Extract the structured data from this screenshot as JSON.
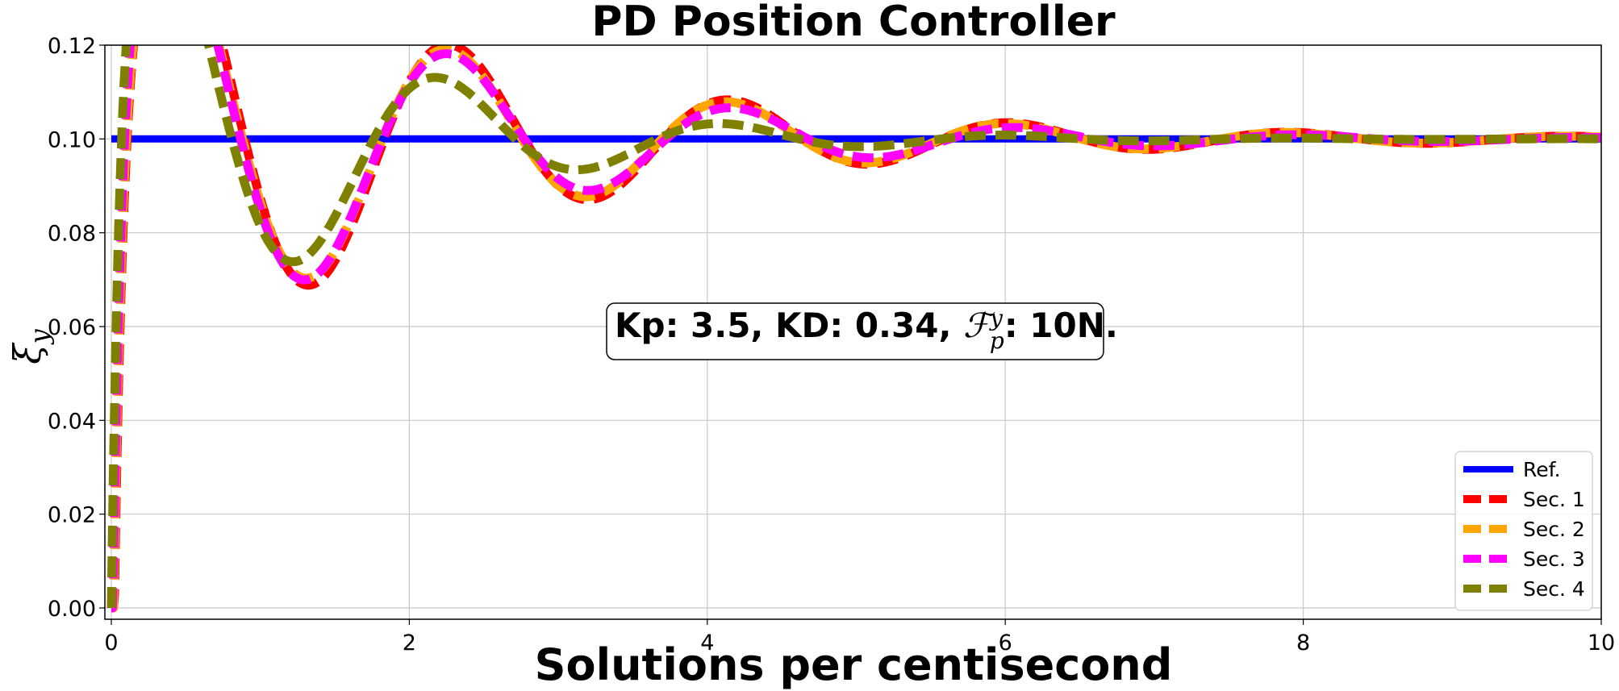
{
  "chart_data": {
    "type": "line",
    "title": "PD Position Controller",
    "xlabel": "Solutions per centisecond",
    "ylabel": "ξ",
    "ylabel_sub": "y",
    "xlim": [
      0,
      10
    ],
    "ylim": [
      0.0,
      0.12
    ],
    "xticks": [
      0,
      2,
      4,
      6,
      8,
      10
    ],
    "xtick_labels": [
      "0",
      "2",
      "4",
      "6",
      "8",
      "10"
    ],
    "yticks": [
      0.0,
      0.02,
      0.04,
      0.06,
      0.08,
      0.1,
      0.12
    ],
    "ytick_labels": [
      "0.00",
      "0.02",
      "0.04",
      "0.06",
      "0.08",
      "0.10",
      "0.12"
    ],
    "grid": true,
    "legend_position": "lower-right",
    "annotation": {
      "prefix": "Kp: 3.5, KD: 0.34, ",
      "symbol": "ℱ",
      "sup": "y",
      "sub": "p",
      "suffix": ": 10N."
    },
    "series": [
      {
        "name": "Ref.",
        "color": "#0000ff",
        "style": "solid",
        "x": [
          0,
          10
        ],
        "y": [
          0.1,
          0.1
        ]
      },
      {
        "name": "Sec. 1",
        "color": "#ff0000",
        "style": "dashed",
        "params": {
          "ts": 0.02,
          "a": 0.058,
          "zeta": 0.14,
          "wd": 3.35,
          "phi": -1.36
        }
      },
      {
        "name": "Sec. 2",
        "color": "#ffa500",
        "style": "dashed",
        "params": {
          "ts": 0.015,
          "a": 0.055,
          "zeta": 0.14,
          "wd": 3.35,
          "phi": -1.33
        }
      },
      {
        "name": "Sec. 3",
        "color": "#ff00ff",
        "style": "dashed",
        "params": {
          "ts": 0.01,
          "a": 0.06,
          "zeta": 0.16,
          "wd": 3.3,
          "phi": -1.26
        }
      },
      {
        "name": "Sec. 4",
        "color": "#808000",
        "style": "dashed",
        "params": {
          "ts": 0.0,
          "a": 0.065,
          "zeta": 0.22,
          "wd": 3.3,
          "phi": -1.1
        }
      }
    ]
  }
}
